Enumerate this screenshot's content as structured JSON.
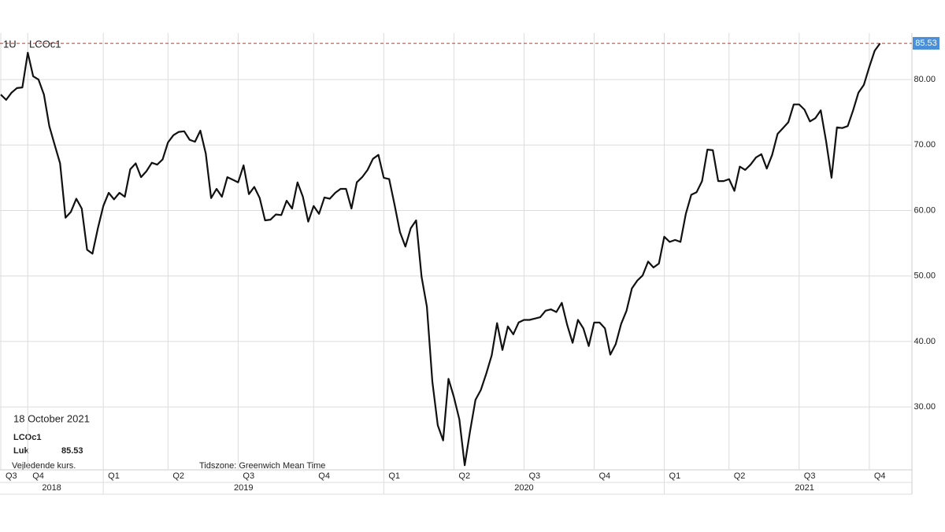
{
  "chart_data": {
    "type": "line",
    "interval": "1U",
    "date": "18 October 2021",
    "close_label": "Luk",
    "note": "Vejledende kurs.",
    "timezone": "Tidszone: Greenwich Mean Time",
    "categories": [
      "Q3",
      null,
      null,
      null,
      null,
      "Q4",
      null,
      null,
      null,
      null,
      null,
      null,
      null,
      null,
      null,
      null,
      null,
      null,
      null,
      "Q1",
      null,
      null,
      null,
      null,
      null,
      null,
      null,
      null,
      null,
      null,
      null,
      "Q2",
      null,
      null,
      null,
      null,
      null,
      null,
      null,
      null,
      null,
      null,
      null,
      null,
      "Q3",
      null,
      null,
      null,
      null,
      null,
      null,
      null,
      null,
      null,
      null,
      null,
      null,
      null,
      "Q4",
      null,
      null,
      null,
      null,
      null,
      null,
      null,
      null,
      null,
      null,
      null,
      null,
      "Q1",
      null,
      null,
      null,
      null,
      null,
      null,
      null,
      null,
      null,
      null,
      null,
      null,
      "Q2",
      null,
      null,
      null,
      null,
      null,
      null,
      null,
      null,
      null,
      null,
      null,
      null,
      "Q3",
      null,
      null,
      null,
      null,
      null,
      null,
      null,
      null,
      null,
      null,
      null,
      null,
      "Q4",
      null,
      null,
      null,
      null,
      null,
      null,
      null,
      null,
      null,
      null,
      null,
      null,
      "Q1",
      null,
      null,
      null,
      null,
      null,
      null,
      null,
      null,
      null,
      null,
      null,
      "Q2",
      null,
      null,
      null,
      null,
      null,
      null,
      null,
      null,
      null,
      null,
      null,
      null,
      "Q3",
      null,
      null,
      null,
      null,
      null,
      null,
      null,
      null,
      null,
      null,
      null,
      null,
      "Q4",
      null,
      null
    ],
    "years": [
      "2018",
      "2019",
      "2020",
      "2021"
    ],
    "series": [
      {
        "name": "LCOc1",
        "color": "#111111",
        "values": [
          77.7,
          76.9,
          78.0,
          78.7,
          78.8,
          84.1,
          80.5,
          80.0,
          77.7,
          72.9,
          70.0,
          67.2,
          58.9,
          59.8,
          61.8,
          60.3,
          54.0,
          53.4,
          57.3,
          60.7,
          62.7,
          61.7,
          62.7,
          62.1,
          66.3,
          67.2,
          65.1,
          66.0,
          67.3,
          67.0,
          67.8,
          70.4,
          71.5,
          72.0,
          72.1,
          70.8,
          70.5,
          72.2,
          68.7,
          61.9,
          63.3,
          62.1,
          65.1,
          64.7,
          64.3,
          66.9,
          62.5,
          63.6,
          61.9,
          58.5,
          58.6,
          59.4,
          59.3,
          61.5,
          60.3,
          64.3,
          62.1,
          58.3,
          60.7,
          59.5,
          62.0,
          61.8,
          62.7,
          63.3,
          63.3,
          60.3,
          64.3,
          65.1,
          66.2,
          67.9,
          68.5,
          65.0,
          64.8,
          60.9,
          56.7,
          54.5,
          57.3,
          58.5,
          49.9,
          45.3,
          33.9,
          27.2,
          24.9,
          34.3,
          31.5,
          28.1,
          21.1,
          26.3,
          31.1,
          32.6,
          35.1,
          37.9,
          42.8,
          38.7,
          42.3,
          41.1,
          42.9,
          43.3,
          43.3,
          43.5,
          43.7,
          44.7,
          44.9,
          44.5,
          45.9,
          42.5,
          39.8,
          43.3,
          42.0,
          39.3,
          42.9,
          42.9,
          42.0,
          38.0,
          39.6,
          42.7,
          44.7,
          48.1,
          49.3,
          50.1,
          52.2,
          51.3,
          51.9,
          56.0,
          55.2,
          55.5,
          55.2,
          59.5,
          62.4,
          62.8,
          64.5,
          69.3,
          69.2,
          64.5,
          64.5,
          64.8,
          63.0,
          66.7,
          66.2,
          67.0,
          68.1,
          68.6,
          66.4,
          68.5,
          71.7,
          72.6,
          73.5,
          76.2,
          76.2,
          75.4,
          73.6,
          74.1,
          75.3,
          70.6,
          65.0,
          72.7,
          72.6,
          72.9,
          75.3,
          78.0,
          79.2,
          81.9,
          84.4,
          85.53
        ]
      }
    ],
    "ylim": [
      20.4,
      87.1
    ],
    "yticks": [
      {
        "value": 30,
        "label": "30.00"
      },
      {
        "value": 40,
        "label": "40.00"
      },
      {
        "value": 50,
        "label": "50.00"
      },
      {
        "value": 60,
        "label": "60.00"
      },
      {
        "value": 70,
        "label": "70.00"
      },
      {
        "value": 80,
        "label": "80.00"
      }
    ],
    "grid": true,
    "reference_line_color": "#c0392b",
    "last_tag_color": "#4a8fd8"
  }
}
